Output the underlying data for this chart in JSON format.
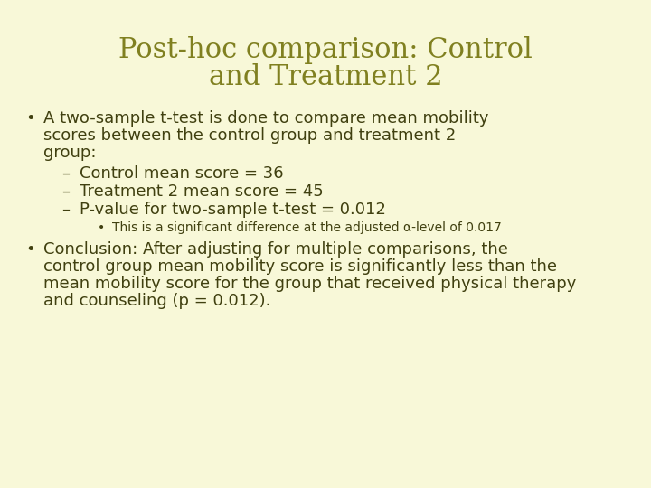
{
  "background_color": "#f8f8d8",
  "title_line1": "Post-hoc comparison: Control",
  "title_line2": "and Treatment 2",
  "title_color": "#808020",
  "title_fontsize": 22,
  "title_font": "serif",
  "body_color": "#404010",
  "body_fontsize": 13,
  "sub_bullet_fontsize": 10,
  "dash_fontsize": 13,
  "bullet1_lines": [
    "A two-sample t-test is done to compare mean mobility",
    "scores between the control group and treatment 2",
    "group:"
  ],
  "dash_items": [
    "Control mean score = 36",
    "Treatment 2 mean score = 45",
    "P-value for two-sample t-test = 0.012"
  ],
  "sub_bullet": "This is a significant difference at the adjusted α-level of 0.017",
  "bullet2_lines": [
    "Conclusion: After adjusting for multiple comparisons, the",
    "control group mean mobility score is significantly less than the",
    "mean mobility score for the group that received physical therapy",
    "and counseling (p = 0.012)."
  ]
}
